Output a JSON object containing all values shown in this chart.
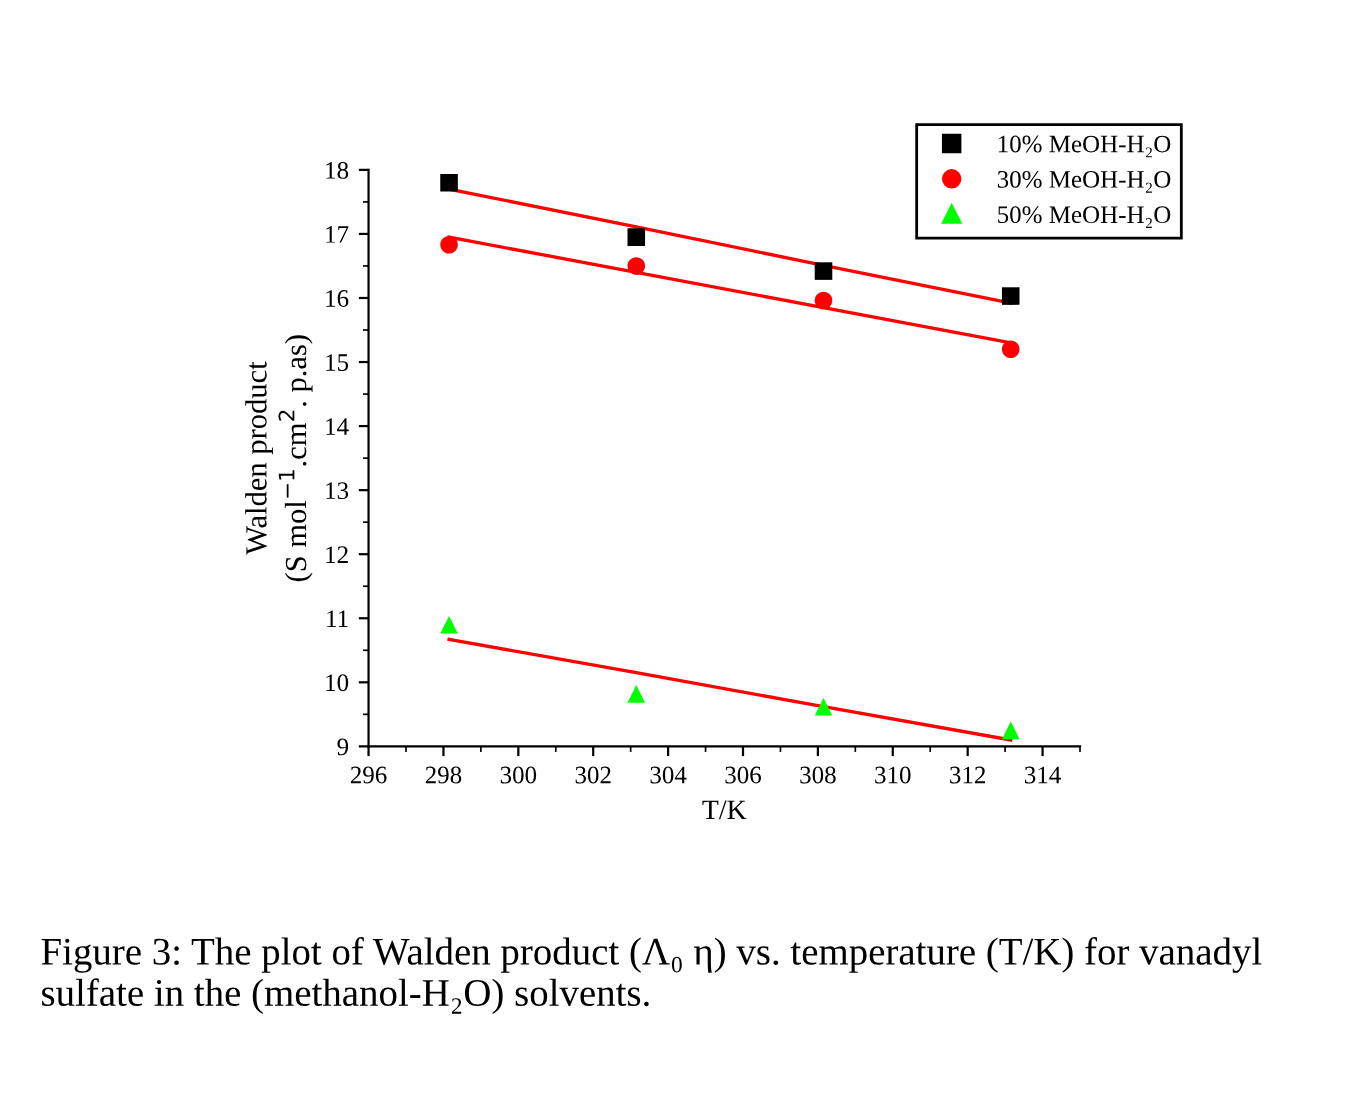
{
  "chart_data": {
    "type": "scatter",
    "xlabel": "T/K",
    "ylabel": "Walden product\n(S mol$^{−1}$.cm$^{2}$. p.as)",
    "x": [
      298.15,
      303.15,
      308.15,
      313.15
    ],
    "series": [
      {
        "name": "10% MeOH-H₂O",
        "color": "#000000",
        "marker": "square",
        "values": [
          17.8,
          16.95,
          16.42,
          16.03
        ]
      },
      {
        "name": "30% MeOH-H₂O",
        "color": "#ff0000",
        "marker": "circle",
        "values": [
          16.83,
          16.5,
          15.96,
          15.2
        ]
      },
      {
        "name": "50% MeOH-H₂O",
        "color": "#00ff00",
        "marker": "triangle",
        "values": [
          10.9,
          9.82,
          9.62,
          9.25
        ]
      },
      {
        "type": "line",
        "color": "#ff0000",
        "values": [
          17.7,
          17.11,
          16.51,
          15.92
        ]
      },
      {
        "type": "line",
        "color": "#ff0000",
        "values": [
          16.95,
          16.4,
          15.85,
          15.3
        ]
      },
      {
        "type": "line",
        "color": "#ff0000",
        "values": [
          10.67,
          10.15,
          9.62,
          9.1
        ]
      }
    ],
    "xlim": [
      296,
      315
    ],
    "xticks": [
      296,
      298,
      300,
      302,
      304,
      306,
      308,
      310,
      312,
      314
    ],
    "ylim": [
      9,
      18
    ],
    "yticks": [
      9,
      10,
      11,
      12,
      13,
      14,
      15,
      16,
      17,
      18
    ],
    "grid": false,
    "legend": "top right",
    "annotations": [
      "Figure 3: The plot of Walden product (Λ₀ η) vs. temperature (T/K) for vanadyl sulfate in the (methanol-H₂O) solvents."
    ]
  }
}
